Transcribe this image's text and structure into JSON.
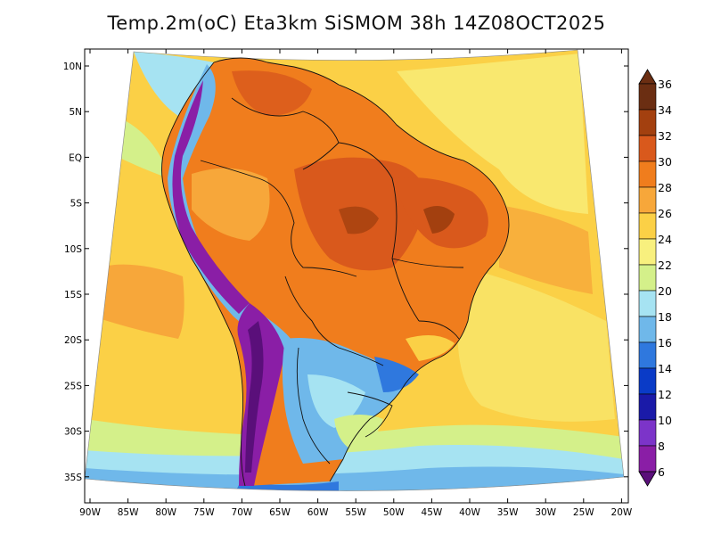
{
  "title": "Temp.2m(oC) Eta3km SiSMOM 38h 14Z08OCT2025",
  "lat_labels": [
    "10N",
    "5N",
    "EQ",
    "5S",
    "10S",
    "15S",
    "20S",
    "25S",
    "30S",
    "35S"
  ],
  "lon_labels": [
    "90W",
    "85W",
    "80W",
    "75W",
    "70W",
    "65W",
    "60W",
    "55W",
    "50W",
    "45W",
    "40W",
    "35W",
    "30W",
    "25W",
    "20W"
  ],
  "colorbar": {
    "labels": [
      "36",
      "34",
      "32",
      "30",
      "28",
      "26",
      "24",
      "22",
      "20",
      "18",
      "16",
      "14",
      "12",
      "10",
      "8",
      "6"
    ],
    "colors": [
      "#6b2e12",
      "#a3400f",
      "#d9591c",
      "#f07d1d",
      "#f7a73a",
      "#fbd046",
      "#f8f07e",
      "#d4f08a",
      "#a6e3f2",
      "#6fb8ea",
      "#2f78de",
      "#0a3bc7",
      "#1a1aa8",
      "#7c34c9",
      "#8a1ea6",
      "#5a0f7a"
    ]
  }
}
